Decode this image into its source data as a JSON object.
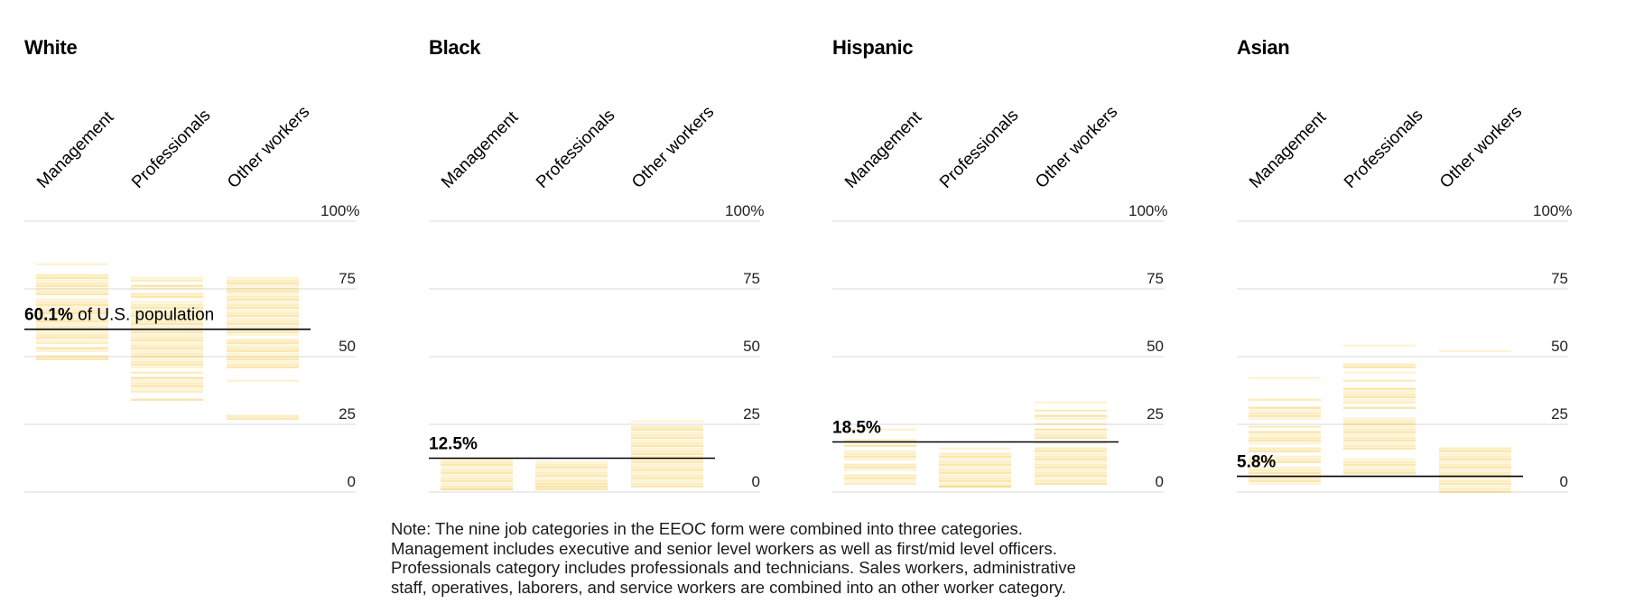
{
  "note": "Note: The nine job categories in the EEOC form were combined into three categories. Management includes executive and senior level workers as well as first/mid level officers. Professionals category includes professionals and technicians. Sales workers, administrative staff, operatives, laborers, and service workers are combined into an other worker category.",
  "colors": {
    "stripe": "#f5c842",
    "gridline": "#d9d9d9",
    "reference_line": "#000000"
  },
  "chart_data": [
    {
      "type": "bar",
      "title": "White",
      "categories": [
        "Management",
        "Professionals",
        "Other workers"
      ],
      "ylim": [
        0,
        100
      ],
      "yticks": [
        "100%",
        "75",
        "50",
        "25",
        "0"
      ],
      "reference": {
        "value": 60.1,
        "label_bold": "60.1%",
        "label_rest": " of U.S. population"
      },
      "stripes": [
        [
          84,
          80,
          79,
          78,
          77,
          76,
          75,
          74,
          73,
          71,
          70,
          69,
          68,
          67,
          66,
          65,
          64,
          63,
          62,
          61,
          60,
          59,
          58,
          57,
          56,
          55,
          53,
          52,
          50,
          49
        ],
        [
          79,
          78,
          76,
          75,
          73,
          72,
          70,
          69,
          68,
          67,
          66,
          65,
          64,
          63,
          62,
          61,
          60,
          59,
          58,
          57,
          56,
          55,
          54,
          53,
          52,
          51,
          50,
          49,
          48,
          47,
          46,
          44,
          42,
          41,
          40,
          39,
          38,
          37,
          34
        ],
        [
          79,
          78,
          77,
          76,
          75,
          74,
          73,
          72,
          71,
          70,
          69,
          68,
          67,
          66,
          65,
          64,
          63,
          62,
          61,
          60,
          59,
          58,
          56,
          55,
          54,
          53,
          52,
          51,
          50,
          49,
          48,
          47,
          46,
          41,
          28,
          27
        ]
      ]
    },
    {
      "type": "bar",
      "title": "Black",
      "categories": [
        "Management",
        "Professionals",
        "Other workers"
      ],
      "ylim": [
        0,
        100
      ],
      "yticks": [
        "100%",
        "75",
        "50",
        "25",
        "0"
      ],
      "reference": {
        "value": 12.5,
        "label_bold": "12.5%",
        "label_rest": ""
      },
      "stripes": [
        [
          12,
          11,
          10,
          9,
          8,
          7,
          6,
          5,
          4,
          3,
          2,
          1,
          1
        ],
        [
          11,
          10,
          9,
          8,
          7,
          6,
          5,
          4,
          3,
          2,
          2,
          1
        ],
        [
          26,
          24,
          23,
          22,
          21,
          20,
          19,
          18,
          17,
          16,
          15,
          14,
          13,
          12,
          11,
          10,
          9,
          8,
          7,
          6,
          5,
          4,
          3,
          2
        ]
      ]
    },
    {
      "type": "bar",
      "title": "Hispanic",
      "categories": [
        "Management",
        "Professionals",
        "Other workers"
      ],
      "ylim": [
        0,
        100
      ],
      "yticks": [
        "100%",
        "75",
        "50",
        "25",
        "0"
      ],
      "reference": {
        "value": 18.5,
        "label_bold": "18.5%",
        "label_rest": ""
      },
      "stripes": [
        [
          23,
          19,
          17,
          15,
          14,
          13,
          12,
          10,
          9,
          8,
          6,
          5,
          4,
          3
        ],
        [
          16,
          14,
          13,
          12,
          11,
          10,
          9,
          8,
          7,
          6,
          5,
          4,
          3,
          2,
          2
        ],
        [
          33,
          30,
          28,
          27,
          25,
          23,
          22,
          21,
          20,
          18,
          16,
          15,
          14,
          13,
          12,
          11,
          10,
          9,
          8,
          7,
          6,
          5,
          4,
          3
        ]
      ]
    },
    {
      "type": "bar",
      "title": "Asian",
      "categories": [
        "Management",
        "Professionals",
        "Other workers"
      ],
      "ylim": [
        0,
        100
      ],
      "yticks": [
        "100%",
        "75",
        "50",
        "25",
        "0"
      ],
      "reference": {
        "value": 5.8,
        "label_bold": "5.8%",
        "label_rest": ""
      },
      "stripes": [
        [
          42,
          34,
          31,
          30,
          29,
          28,
          27,
          24,
          22,
          21,
          20,
          19,
          18,
          16,
          15,
          13,
          12,
          11,
          9,
          8,
          7,
          6,
          5,
          4,
          3
        ],
        [
          54,
          47,
          46,
          44,
          41,
          38,
          37,
          36,
          35,
          34,
          33,
          31,
          27,
          26,
          25,
          24,
          23,
          22,
          21,
          20,
          19,
          18,
          17,
          16,
          12,
          11,
          10,
          9,
          8,
          7,
          6
        ],
        [
          52,
          16,
          15,
          14,
          13,
          12,
          11,
          10,
          9,
          8,
          7,
          6,
          5,
          4,
          3,
          2,
          1,
          0
        ]
      ]
    }
  ]
}
